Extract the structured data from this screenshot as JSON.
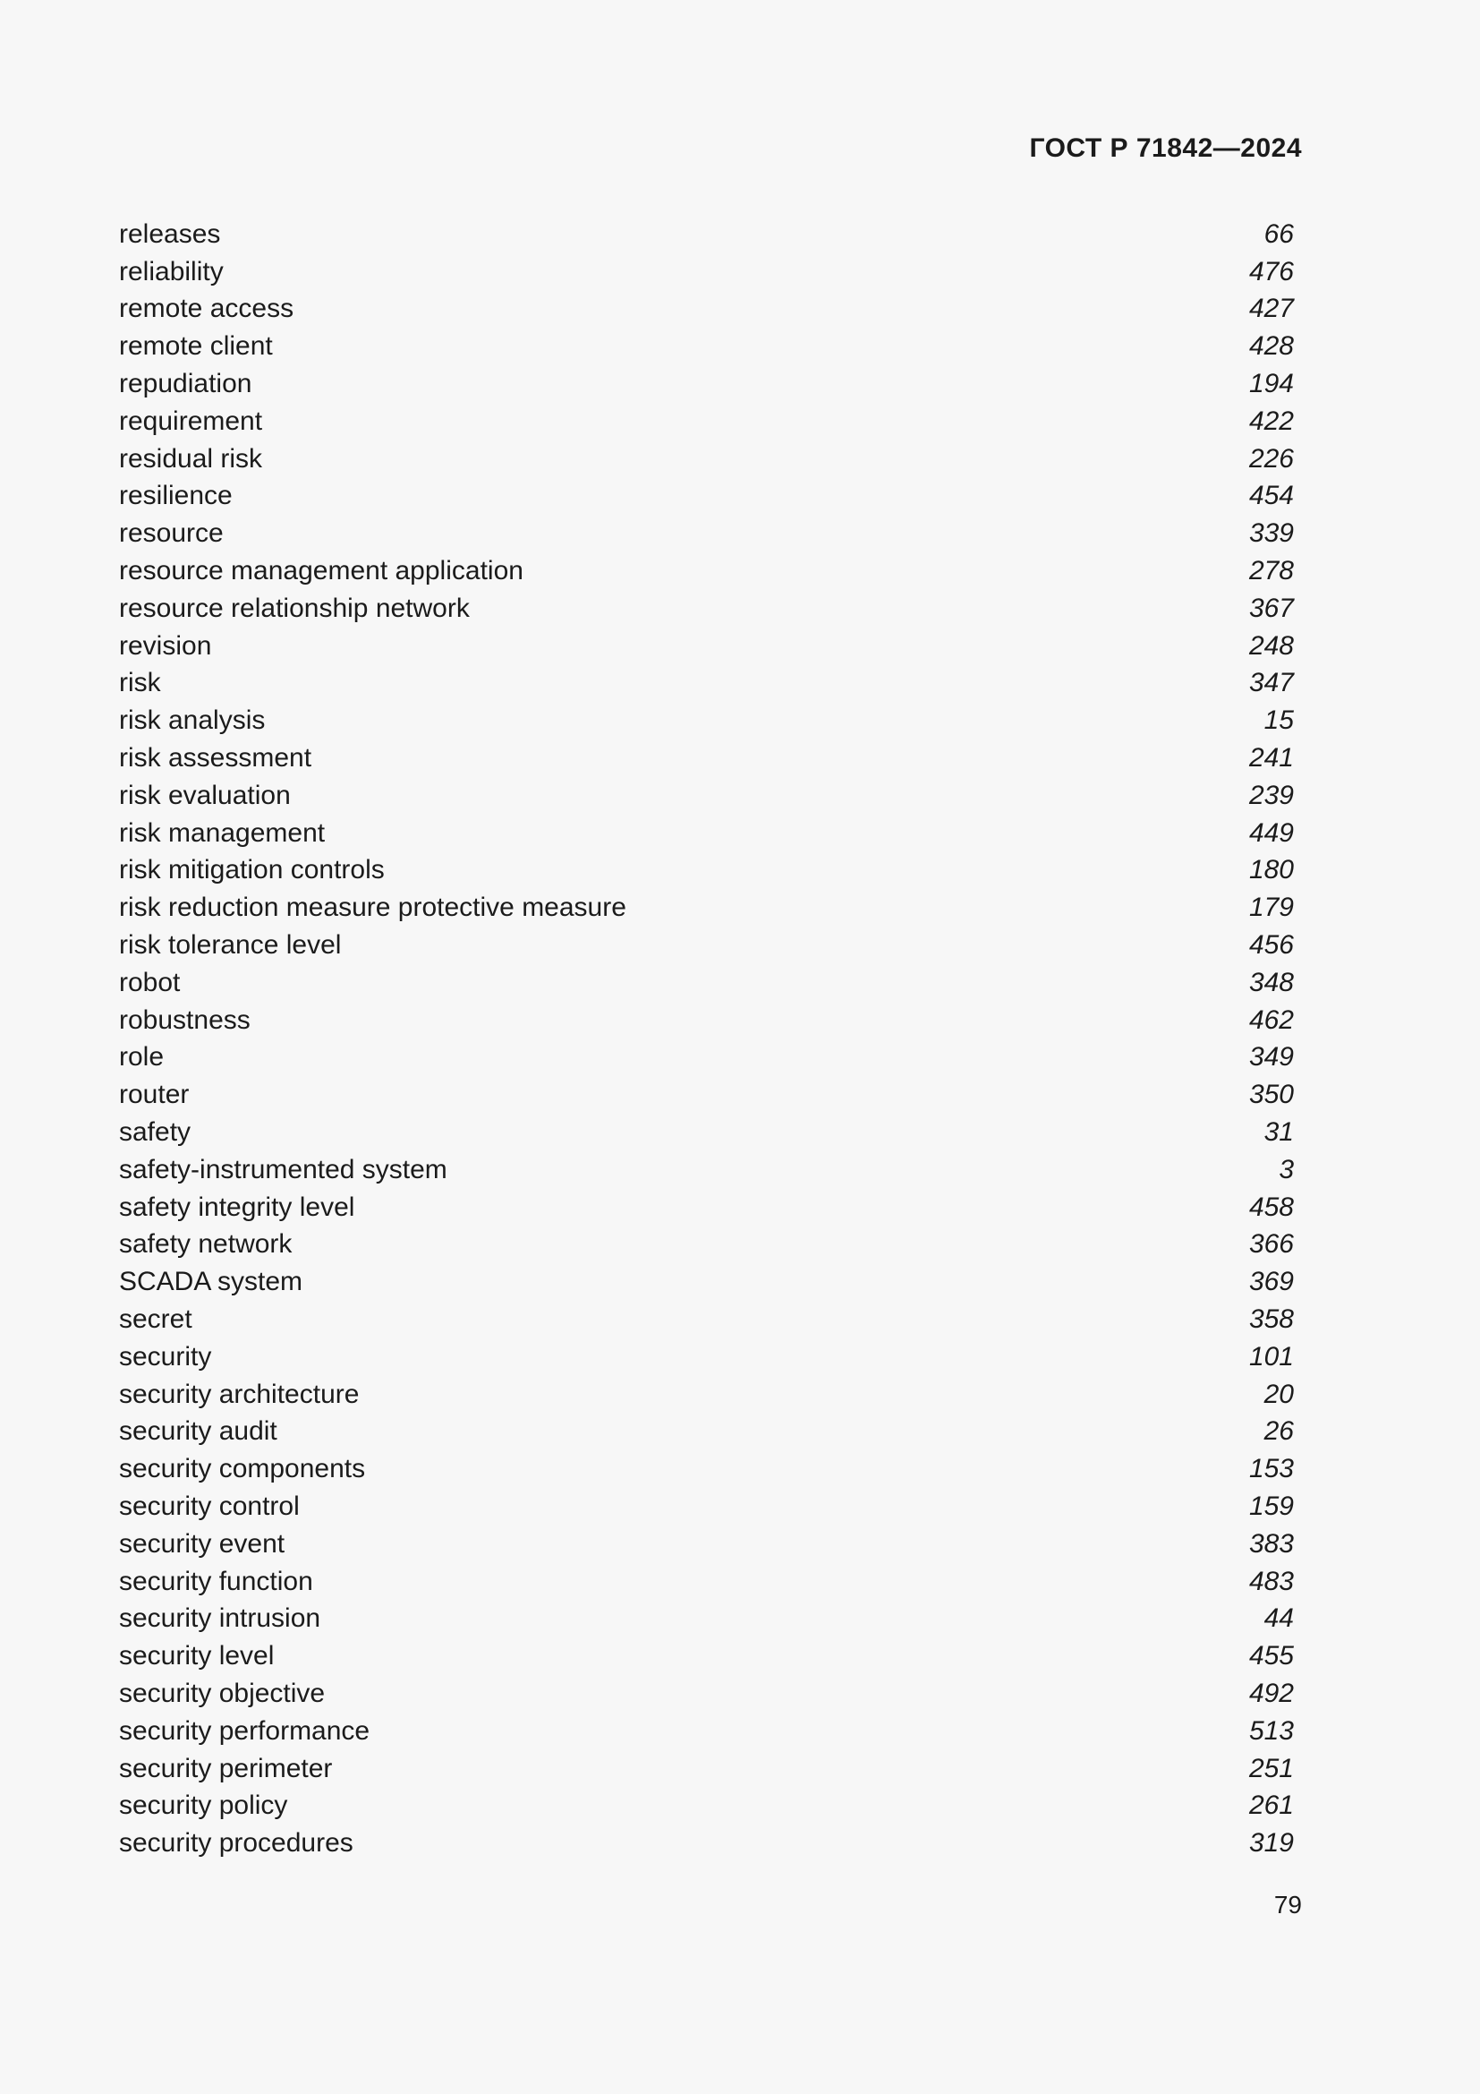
{
  "page": {
    "header": "ГОСТ Р 71842—2024",
    "page_number": "79"
  },
  "index": {
    "entries": [
      {
        "term": "releases",
        "page": "66"
      },
      {
        "term": "reliability",
        "page": "476"
      },
      {
        "term": "remote access",
        "page": "427"
      },
      {
        "term": "remote client",
        "page": "428"
      },
      {
        "term": "repudiation",
        "page": "194"
      },
      {
        "term": "requirement",
        "page": "422"
      },
      {
        "term": "residual risk",
        "page": "226"
      },
      {
        "term": "resilience",
        "page": "454"
      },
      {
        "term": "resource",
        "page": "339"
      },
      {
        "term": "resource management application",
        "page": "278"
      },
      {
        "term": "resource relationship network",
        "page": "367"
      },
      {
        "term": "revision",
        "page": "248"
      },
      {
        "term": "risk",
        "page": "347"
      },
      {
        "term": "risk analysis",
        "page": "15"
      },
      {
        "term": "risk assessment",
        "page": "241"
      },
      {
        "term": "risk evaluation",
        "page": "239"
      },
      {
        "term": "risk management",
        "page": "449"
      },
      {
        "term": "risk mitigation controls",
        "page": "180"
      },
      {
        "term": "risk reduction measure protective measure",
        "page": "179"
      },
      {
        "term": "risk tolerance level",
        "page": "456"
      },
      {
        "term": "robot",
        "page": "348"
      },
      {
        "term": "robustness",
        "page": "462"
      },
      {
        "term": "role",
        "page": "349"
      },
      {
        "term": "router",
        "page": "350"
      },
      {
        "term": "safety",
        "page": "31"
      },
      {
        "term": "safety-instrumented system",
        "page": "3"
      },
      {
        "term": "safety integrity level",
        "page": "458"
      },
      {
        "term": "safety network",
        "page": "366"
      },
      {
        "term": "SCADA system",
        "page": "369"
      },
      {
        "term": "secret",
        "page": "358"
      },
      {
        "term": "security",
        "page": "101"
      },
      {
        "term": "security architecture",
        "page": "20"
      },
      {
        "term": "security audit",
        "page": "26"
      },
      {
        "term": "security components",
        "page": "153"
      },
      {
        "term": "security control",
        "page": "159"
      },
      {
        "term": "security event",
        "page": "383"
      },
      {
        "term": "security function",
        "page": "483"
      },
      {
        "term": "security intrusion",
        "page": "44"
      },
      {
        "term": "security level",
        "page": "455"
      },
      {
        "term": "security objective",
        "page": "492"
      },
      {
        "term": "security performance",
        "page": "513"
      },
      {
        "term": "security perimeter",
        "page": "251"
      },
      {
        "term": "security policy",
        "page": "261"
      },
      {
        "term": "security procedures",
        "page": "319"
      }
    ]
  }
}
